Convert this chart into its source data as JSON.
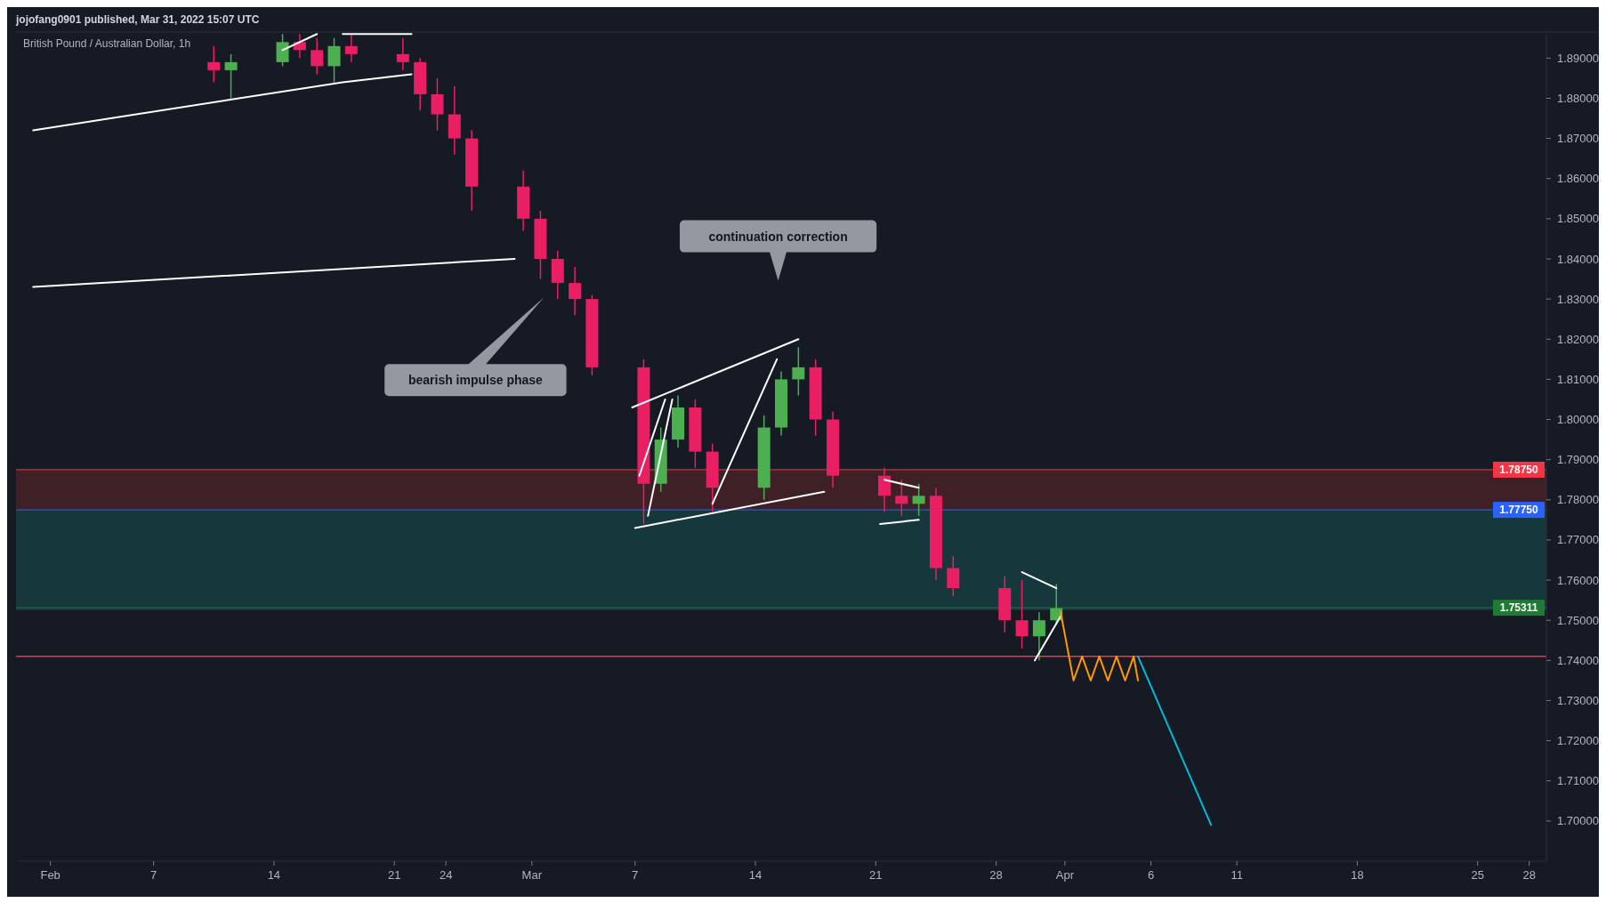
{
  "chart_data": {
    "type": "candlestick",
    "title": "British Pound / Australian Dollar, 1h",
    "annotations": [
      "jojofang0901 published, Mar 31, 2022 15:07 UTC",
      "bearish impulse phase",
      "continuation correction"
    ],
    "x": [
      "2022-02-10T12:00",
      "2022-02-11T12:00",
      "2022-02-14T12:00",
      "2022-02-15T12:00",
      "2022-02-16T12:00",
      "2022-02-17T12:00",
      "2022-02-18T12:00",
      "2022-02-21T12:00",
      "2022-02-22T12:00",
      "2022-02-23T12:00",
      "2022-02-24T12:00",
      "2022-02-25T12:00",
      "2022-02-28T12:00",
      "2022-03-01T12:00",
      "2022-03-02T12:00",
      "2022-03-03T12:00",
      "2022-03-04T12:00",
      "2022-03-07T12:00",
      "2022-03-08T12:00",
      "2022-03-09T12:00",
      "2022-03-10T12:00",
      "2022-03-11T12:00",
      "2022-03-14T12:00",
      "2022-03-15T12:00",
      "2022-03-16T12:00",
      "2022-03-17T12:00",
      "2022-03-18T12:00",
      "2022-03-21T12:00",
      "2022-03-22T12:00",
      "2022-03-23T12:00",
      "2022-03-24T12:00",
      "2022-03-25T12:00",
      "2022-03-28T12:00",
      "2022-03-29T12:00",
      "2022-03-30T12:00",
      "2022-03-31T12:00"
    ],
    "ohlc": [
      [
        1.889,
        1.893,
        1.884,
        1.887
      ],
      [
        1.887,
        1.891,
        1.88,
        1.889
      ],
      [
        1.889,
        1.896,
        1.888,
        1.894
      ],
      [
        1.894,
        1.896,
        1.89,
        1.892
      ],
      [
        1.892,
        1.895,
        1.886,
        1.888
      ],
      [
        1.888,
        1.895,
        1.884,
        1.893
      ],
      [
        1.893,
        1.896,
        1.889,
        1.891
      ],
      [
        1.891,
        1.895,
        1.887,
        1.889
      ],
      [
        1.889,
        1.89,
        1.877,
        1.881
      ],
      [
        1.881,
        1.885,
        1.872,
        1.876
      ],
      [
        1.876,
        1.883,
        1.866,
        1.87
      ],
      [
        1.87,
        1.872,
        1.852,
        1.858
      ],
      [
        1.858,
        1.862,
        1.847,
        1.85
      ],
      [
        1.85,
        1.852,
        1.835,
        1.84
      ],
      [
        1.84,
        1.842,
        1.83,
        1.834
      ],
      [
        1.834,
        1.838,
        1.826,
        1.83
      ],
      [
        1.83,
        1.831,
        1.811,
        1.813
      ],
      [
        1.813,
        1.815,
        1.774,
        1.784
      ],
      [
        1.784,
        1.798,
        1.782,
        1.795
      ],
      [
        1.795,
        1.806,
        1.793,
        1.803
      ],
      [
        1.803,
        1.805,
        1.788,
        1.792
      ],
      [
        1.792,
        1.794,
        1.777,
        1.783
      ],
      [
        1.783,
        1.801,
        1.78,
        1.798
      ],
      [
        1.798,
        1.812,
        1.796,
        1.81
      ],
      [
        1.81,
        1.818,
        1.806,
        1.813
      ],
      [
        1.813,
        1.815,
        1.796,
        1.8
      ],
      [
        1.8,
        1.802,
        1.783,
        1.786
      ],
      [
        1.786,
        1.788,
        1.777,
        1.781
      ],
      [
        1.781,
        1.785,
        1.776,
        1.779
      ],
      [
        1.779,
        1.784,
        1.776,
        1.781
      ],
      [
        1.781,
        1.783,
        1.76,
        1.763
      ],
      [
        1.763,
        1.766,
        1.756,
        1.758
      ],
      [
        1.758,
        1.761,
        1.747,
        1.75
      ],
      [
        1.75,
        1.76,
        1.743,
        1.746
      ],
      [
        1.746,
        1.752,
        1.74,
        1.75
      ],
      [
        1.75,
        1.759,
        1.749,
        1.753
      ]
    ],
    "series": [
      {
        "type": "line",
        "color": "#ffffff",
        "x": [
          "2022-01-31",
          "2022-02-18",
          "2022-02-22"
        ],
        "values": [
          1.872,
          1.884,
          1.886
        ]
      },
      {
        "type": "line",
        "color": "#ffffff",
        "x": [
          "2022-01-31",
          "2022-02-28"
        ],
        "values": [
          1.833,
          1.84
        ]
      },
      {
        "type": "line",
        "color": "#ffffff",
        "x": [
          "2022-02-18",
          "2022-02-22"
        ],
        "values": [
          1.896,
          1.896
        ]
      },
      {
        "type": "line",
        "color": "#ffffff",
        "x": [
          "2022-02-14T12:00",
          "2022-02-16T12:00"
        ],
        "values": [
          1.892,
          1.896
        ]
      },
      {
        "type": "line",
        "color": "#ffffff",
        "x": [
          "2022-03-07",
          "2022-03-18"
        ],
        "values": [
          1.773,
          1.782
        ]
      },
      {
        "type": "line",
        "color": "#ffffff",
        "x": [
          "2022-03-06T20:00",
          "2022-03-16T12:00"
        ],
        "values": [
          1.803,
          1.82
        ]
      },
      {
        "type": "line",
        "color": "#ffffff",
        "x": [
          "2022-03-07T18:00",
          "2022-03-09T04:00"
        ],
        "values": [
          1.776,
          1.805
        ]
      },
      {
        "type": "line",
        "color": "#ffffff",
        "x": [
          "2022-03-07T06:00",
          "2022-03-08T18:00"
        ],
        "values": [
          1.786,
          1.805
        ]
      },
      {
        "type": "line",
        "color": "#ffffff",
        "x": [
          "2022-03-11T12:00",
          "2022-03-15T06:00"
        ],
        "values": [
          1.779,
          1.815
        ]
      },
      {
        "type": "line",
        "color": "#ffffff",
        "x": [
          "2022-03-21T12:00",
          "2022-03-23T12:00"
        ],
        "values": [
          1.785,
          1.783
        ]
      },
      {
        "type": "line",
        "color": "#ffffff",
        "x": [
          "2022-03-21T06:00",
          "2022-03-23T12:00"
        ],
        "values": [
          1.774,
          1.775
        ]
      },
      {
        "type": "line",
        "color": "#ffffff",
        "x": [
          "2022-03-29T12:00",
          "2022-03-31T12:00"
        ],
        "values": [
          1.762,
          1.758
        ]
      },
      {
        "type": "line",
        "color": "#ffffff",
        "x": [
          "2022-03-30T06:00",
          "2022-03-31T18:00"
        ],
        "values": [
          1.74,
          1.751
        ]
      },
      {
        "type": "line",
        "color": "#ff9800",
        "x": [
          "2022-03-31T18:00",
          "2022-04-01T12:00",
          "2022-04-02",
          "2022-04-02T12:00",
          "2022-04-03",
          "2022-04-03T12:00",
          "2022-04-04",
          "2022-04-04T12:00",
          "2022-04-05",
          "2022-04-05T06:00"
        ],
        "values": [
          1.752,
          1.735,
          1.741,
          1.735,
          1.741,
          1.735,
          1.741,
          1.735,
          1.741,
          1.735
        ]
      },
      {
        "type": "line",
        "color": "#00bcd4",
        "x": [
          "2022-04-05T06:00",
          "2022-04-09T12:00"
        ],
        "values": [
          1.741,
          1.699
        ]
      }
    ],
    "bands": [
      {
        "axis": "y",
        "from": 1.7775,
        "to": 1.7875,
        "color": "#4a2228"
      },
      {
        "axis": "y",
        "from": 1.7525,
        "to": 1.7775,
        "color": "#173e42"
      }
    ],
    "ref_lines": [
      {
        "axis": "y",
        "value": 1.741,
        "color": "#f23645"
      },
      {
        "axis": "y",
        "value": 1.7875,
        "label": "1.78750",
        "color": "#f23645"
      },
      {
        "axis": "y",
        "value": 1.7775,
        "label": "1.77750",
        "color": "#2962ff"
      },
      {
        "axis": "y",
        "value": 1.75311,
        "label": "1.75311",
        "color": "#1e7b34"
      }
    ],
    "xlim": [
      "2022-01-30",
      "2022-04-29"
    ],
    "xticks": [
      {
        "value": "2022-02-01",
        "label": "Feb"
      },
      {
        "value": "2022-02-07",
        "label": "7"
      },
      {
        "value": "2022-02-14",
        "label": "14"
      },
      {
        "value": "2022-02-21",
        "label": "21"
      },
      {
        "value": "2022-02-24",
        "label": "24"
      },
      {
        "value": "2022-03-01",
        "label": "Mar"
      },
      {
        "value": "2022-03-07",
        "label": "7"
      },
      {
        "value": "2022-03-14",
        "label": "14"
      },
      {
        "value": "2022-03-21",
        "label": "21"
      },
      {
        "value": "2022-03-28",
        "label": "28"
      },
      {
        "value": "2022-04-01",
        "label": "Apr"
      },
      {
        "value": "2022-04-06",
        "label": "6"
      },
      {
        "value": "2022-04-11",
        "label": "11"
      },
      {
        "value": "2022-04-18",
        "label": "18"
      },
      {
        "value": "2022-04-25",
        "label": "25"
      },
      {
        "value": "2022-04-28",
        "label": "28"
      }
    ],
    "ylim": [
      1.69,
      1.8965
    ],
    "yticks": [
      {
        "value": 1.7,
        "label": "1.70000"
      },
      {
        "value": 1.71,
        "label": "1.71000"
      },
      {
        "value": 1.72,
        "label": "1.72000"
      },
      {
        "value": 1.73,
        "label": "1.73000"
      },
      {
        "value": 1.74,
        "label": "1.74000"
      },
      {
        "value": 1.75,
        "label": "1.75000"
      },
      {
        "value": 1.76,
        "label": "1.76000"
      },
      {
        "value": 1.77,
        "label": "1.77000"
      },
      {
        "value": 1.78,
        "label": "1.78000"
      },
      {
        "value": 1.79,
        "label": "1.79000"
      },
      {
        "value": 1.8,
        "label": "1.80000"
      },
      {
        "value": 1.81,
        "label": "1.81000"
      },
      {
        "value": 1.82,
        "label": "1.82000"
      },
      {
        "value": 1.83,
        "label": "1.83000"
      },
      {
        "value": 1.84,
        "label": "1.84000"
      },
      {
        "value": 1.85,
        "label": "1.85000"
      },
      {
        "value": 1.86,
        "label": "1.86000"
      },
      {
        "value": 1.87,
        "label": "1.87000"
      },
      {
        "value": 1.88,
        "label": "1.88000"
      },
      {
        "value": 1.89,
        "label": "1.89000"
      }
    ]
  }
}
